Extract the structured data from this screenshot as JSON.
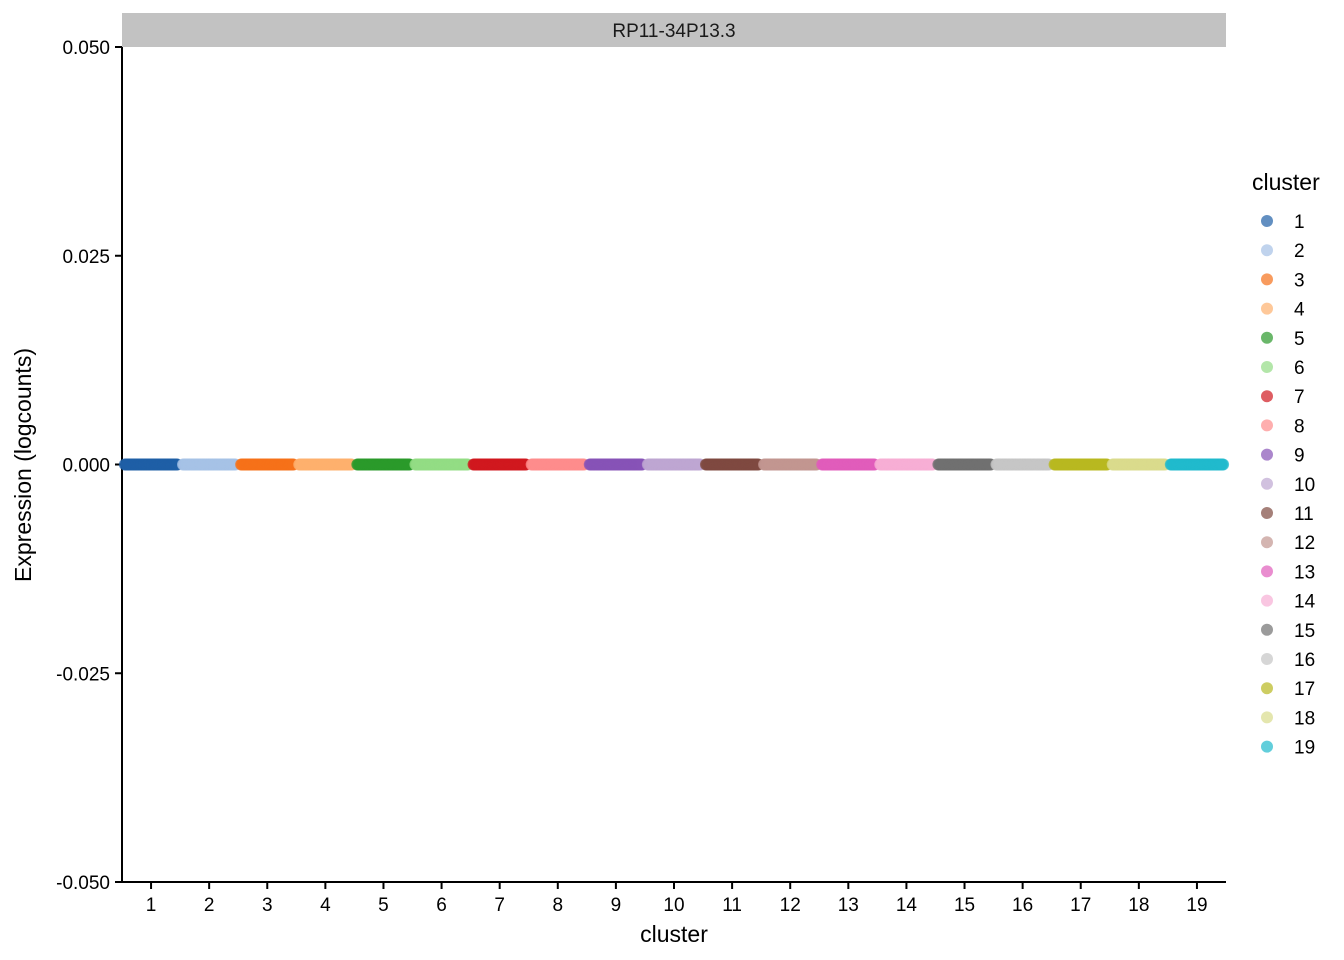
{
  "chart_data": {
    "type": "scatter",
    "facet_label": "RP11-34P13.3",
    "xlabel": "cluster",
    "ylabel": "Expression (logcounts)",
    "categories": [
      "1",
      "2",
      "3",
      "4",
      "5",
      "6",
      "7",
      "8",
      "9",
      "10",
      "11",
      "12",
      "13",
      "14",
      "15",
      "16",
      "17",
      "18",
      "19"
    ],
    "values": [
      0,
      0,
      0,
      0,
      0,
      0,
      0,
      0,
      0,
      0,
      0,
      0,
      0,
      0,
      0,
      0,
      0,
      0,
      0
    ],
    "ylim": [
      -0.05,
      0.05
    ],
    "yticks": [
      0.05,
      0.025,
      0.0,
      -0.025,
      -0.05
    ],
    "ytick_labels": [
      "0.050",
      "0.025",
      "0.000",
      "-0.025",
      "-0.050"
    ],
    "grid": false,
    "legend": {
      "title": "cluster",
      "position": "right",
      "entries": [
        "1",
        "2",
        "3",
        "4",
        "5",
        "6",
        "7",
        "8",
        "9",
        "10",
        "11",
        "12",
        "13",
        "14",
        "15",
        "16",
        "17",
        "18",
        "19"
      ]
    },
    "colors": [
      "#1f5fa6",
      "#a5c1e6",
      "#f5711a",
      "#fdb06e",
      "#2b992b",
      "#93dc84",
      "#d0181f",
      "#fe8c8c",
      "#8753b7",
      "#bea6d2",
      "#7f4a40",
      "#c29690",
      "#e05cbb",
      "#f7aed4",
      "#707070",
      "#c5c5c5",
      "#b8b820",
      "#d9db8c",
      "#20b9cc"
    ]
  }
}
